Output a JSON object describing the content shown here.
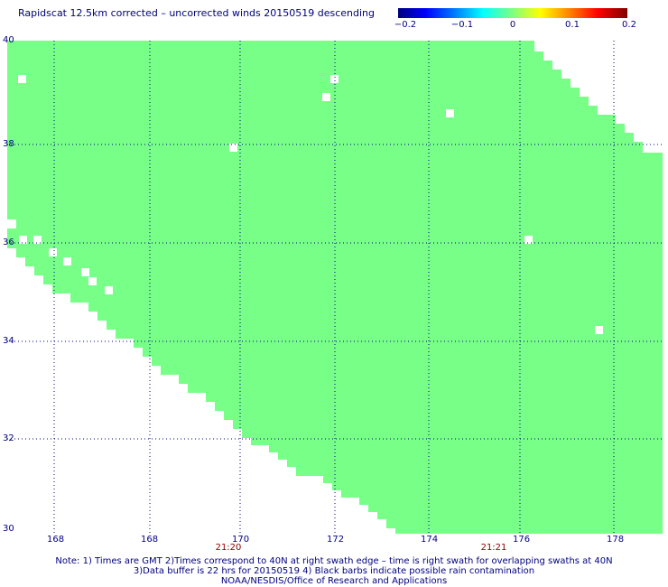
{
  "title": "Rapidscat 12.5km corrected – uncorrected winds 20150519 descending",
  "colorbar": {
    "ticks": [
      "−0.2",
      "−0.1",
      "0",
      "0.1",
      "0.2"
    ]
  },
  "map": {
    "lat_labels": [
      "40",
      "38",
      "36",
      "34",
      "32",
      "30"
    ],
    "lon_labels": [
      "168",
      "168",
      "170",
      "172",
      "174",
      "176",
      "178"
    ],
    "time_labels": [
      "21:20",
      "21:21"
    ],
    "fill_color": "#77ff88",
    "grid_color": "#000080"
  },
  "footer": {
    "line1": "Note: 1) Times are GMT 2)Times correspond to 40N at right swath edge – time is right swath for overlapping swaths at 40N",
    "line2": "3)Data buffer is 22 hrs for 20150519 4) Black barbs indicate possible rain contamination",
    "line3": "NOAA/NESDIS/Office of Research and Applications"
  }
}
